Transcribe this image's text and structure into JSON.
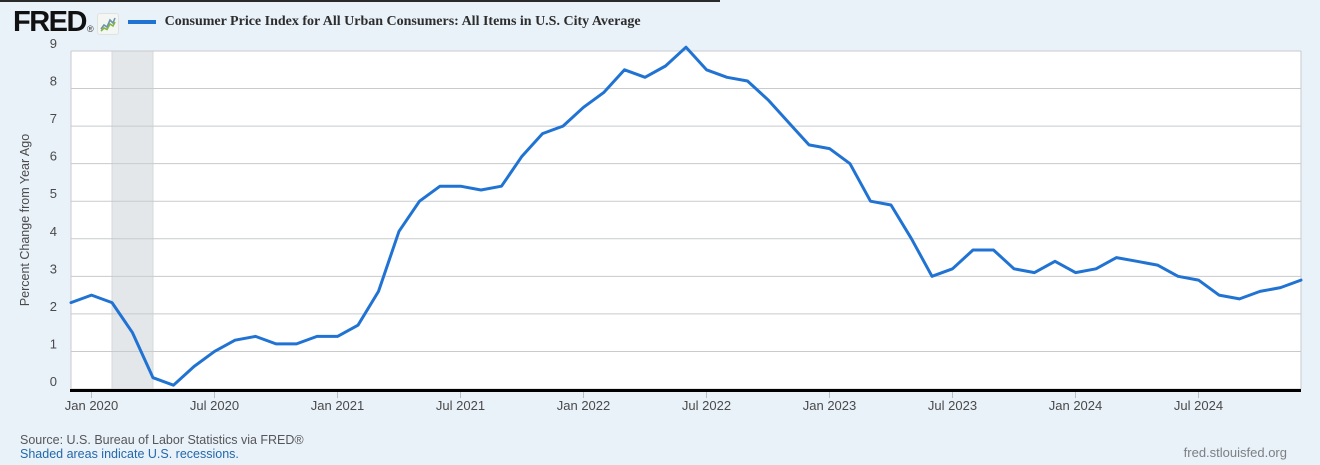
{
  "header": {
    "logo": "FRED",
    "logo_registered": "®",
    "series_title": "Consumer Price Index for All Urban Consumers: All Items in U.S. City Average"
  },
  "footer": {
    "source": "Source: U.S. Bureau of Labor Statistics via FRED®",
    "note_link": "Shaded areas indicate U.S. recessions.",
    "watermark": "fred.stlouisfed.org"
  },
  "colors": {
    "page_bg": "#e9f1f9",
    "plot_bg": "#ffffff",
    "line": "#2173d3",
    "gridline": "#c8cacc",
    "plot_border": "#c8cacc",
    "axis": "#000000",
    "tick_mark": "#b9bec4",
    "tick_text": "#4a4a4a",
    "recession_band": "#e4e7ea",
    "recession_band_edge": "#d5d9dc",
    "title_text": "#2d2d2d",
    "link": "#2368ab",
    "source_text": "#56575a",
    "watermark_text": "#7d7f83"
  },
  "chart_data": {
    "type": "line",
    "title": "Consumer Price Index for All Urban Consumers: All Items in U.S. City Average",
    "xlabel": "",
    "ylabel": "Percent Change from Year Ago",
    "ylim": [
      0,
      9
    ],
    "y_ticks": [
      0,
      1,
      2,
      3,
      4,
      5,
      6,
      7,
      8,
      9
    ],
    "grid": true,
    "legend_position": "top-left",
    "legend": [
      {
        "label": "Consumer Price Index for All Urban Consumers: All Items in U.S. City Average",
        "color": "#2173d3"
      }
    ],
    "frequency": "monthly",
    "x_range": [
      "2019-12",
      "2024-12"
    ],
    "x": [
      "2019-12",
      "2020-01",
      "2020-02",
      "2020-03",
      "2020-04",
      "2020-05",
      "2020-06",
      "2020-07",
      "2020-08",
      "2020-09",
      "2020-10",
      "2020-11",
      "2020-12",
      "2021-01",
      "2021-02",
      "2021-03",
      "2021-04",
      "2021-05",
      "2021-06",
      "2021-07",
      "2021-08",
      "2021-09",
      "2021-10",
      "2021-11",
      "2021-12",
      "2022-01",
      "2022-02",
      "2022-03",
      "2022-04",
      "2022-05",
      "2022-06",
      "2022-07",
      "2022-08",
      "2022-09",
      "2022-10",
      "2022-11",
      "2022-12",
      "2023-01",
      "2023-02",
      "2023-03",
      "2023-04",
      "2023-05",
      "2023-06",
      "2023-07",
      "2023-08",
      "2023-09",
      "2023-10",
      "2023-11",
      "2023-12",
      "2024-01",
      "2024-02",
      "2024-03",
      "2024-04",
      "2024-05",
      "2024-06",
      "2024-07",
      "2024-08",
      "2024-09",
      "2024-10",
      "2024-11",
      "2024-12"
    ],
    "values": [
      2.3,
      2.5,
      2.3,
      1.5,
      0.3,
      0.1,
      0.6,
      1.0,
      1.3,
      1.4,
      1.2,
      1.2,
      1.4,
      1.4,
      1.7,
      2.6,
      4.2,
      5.0,
      5.4,
      5.4,
      5.3,
      5.4,
      6.2,
      6.8,
      7.0,
      7.5,
      7.9,
      8.5,
      8.3,
      8.6,
      9.1,
      8.5,
      8.3,
      8.2,
      7.7,
      7.1,
      6.5,
      6.4,
      6.0,
      5.0,
      4.9,
      4.0,
      3.0,
      3.2,
      3.7,
      3.7,
      3.2,
      3.1,
      3.4,
      3.1,
      3.2,
      3.5,
      3.4,
      3.3,
      3.0,
      2.9,
      2.5,
      2.4,
      2.6,
      2.7,
      2.9
    ],
    "x_tick_labels": [
      "Jan 2020",
      "Jul 2020",
      "Jan 2021",
      "Jul 2021",
      "Jan 2022",
      "Jul 2022",
      "Jan 2023",
      "Jul 2023",
      "Jan 2024",
      "Jul 2024"
    ],
    "x_tick_month_indices": [
      1,
      7,
      13,
      19,
      25,
      31,
      37,
      43,
      49,
      55
    ],
    "recession_bands": [
      {
        "start_index": 2,
        "end_index": 4
      }
    ]
  }
}
